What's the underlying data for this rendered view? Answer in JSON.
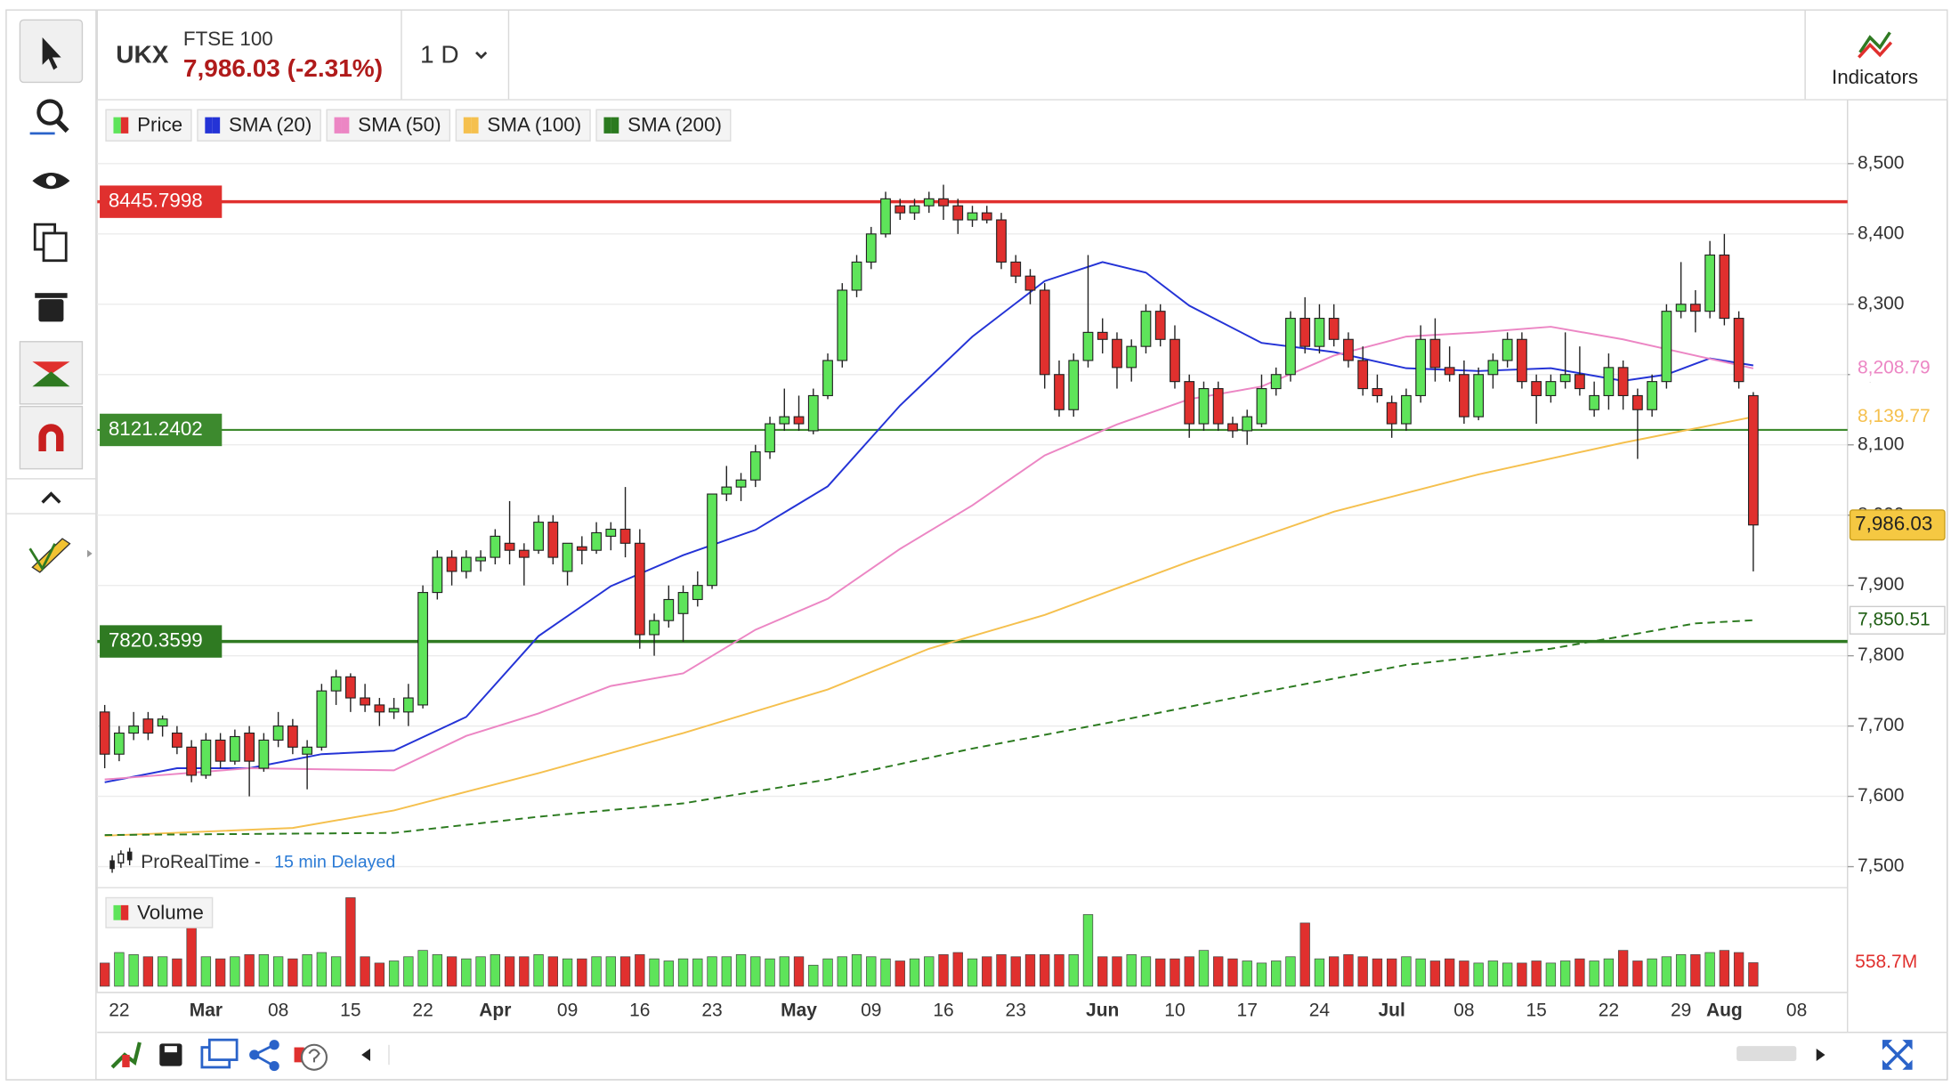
{
  "header": {
    "symbol": "UKX",
    "name": "FTSE 100",
    "quote": "7,986.03 (-2.31%)",
    "interval": "1 D",
    "indicators": "Indicators"
  },
  "footer": {
    "source": "ProRealTime -",
    "delay": "15 min Delayed"
  },
  "chart_data": {
    "type": "candlestick",
    "name": "Price",
    "up_color": "#5ee45a",
    "down_color": "#e0302e",
    "last_label": "7,986.03",
    "categories": [
      null,
      "22",
      null,
      null,
      null,
      null,
      null,
      "Mar",
      null,
      null,
      null,
      null,
      "08",
      null,
      null,
      null,
      null,
      "15",
      null,
      null,
      null,
      null,
      "22",
      null,
      null,
      null,
      null,
      "Apr",
      null,
      null,
      null,
      null,
      "09",
      null,
      null,
      null,
      null,
      "16",
      null,
      null,
      null,
      null,
      "23",
      null,
      null,
      null,
      null,
      null,
      "May",
      null,
      null,
      null,
      null,
      "09",
      null,
      null,
      null,
      null,
      "16",
      null,
      null,
      null,
      null,
      "23",
      null,
      null,
      null,
      null,
      null,
      "Jun",
      null,
      null,
      null,
      null,
      "10",
      null,
      null,
      null,
      null,
      "17",
      null,
      null,
      null,
      null,
      "24",
      null,
      null,
      null,
      null,
      "Jul",
      null,
      null,
      null,
      null,
      "08",
      null,
      null,
      null,
      null,
      "15",
      null,
      null,
      null,
      null,
      "22",
      null,
      null,
      null,
      null,
      "29",
      null,
      null,
      "Aug",
      null,
      null,
      null,
      null,
      "08",
      null,
      null
    ],
    "ohlc": [
      [
        7720,
        7730,
        7640,
        7660
      ],
      [
        7660,
        7700,
        7650,
        7690
      ],
      [
        7690,
        7720,
        7680,
        7700
      ],
      [
        7710,
        7720,
        7680,
        7690
      ],
      [
        7700,
        7715,
        7685,
        7710
      ],
      [
        7690,
        7700,
        7660,
        7670
      ],
      [
        7670,
        7680,
        7620,
        7630
      ],
      [
        7630,
        7690,
        7625,
        7680
      ],
      [
        7680,
        7690,
        7640,
        7650
      ],
      [
        7650,
        7695,
        7645,
        7685
      ],
      [
        7690,
        7700,
        7600,
        7650
      ],
      [
        7640,
        7690,
        7635,
        7680
      ],
      [
        7680,
        7720,
        7670,
        7700
      ],
      [
        7700,
        7710,
        7660,
        7670
      ],
      [
        7660,
        7680,
        7610,
        7670
      ],
      [
        7670,
        7760,
        7665,
        7750
      ],
      [
        7750,
        7780,
        7730,
        7770
      ],
      [
        7770,
        7775,
        7720,
        7740
      ],
      [
        7740,
        7760,
        7720,
        7730
      ],
      [
        7730,
        7740,
        7700,
        7720
      ],
      [
        7720,
        7740,
        7710,
        7725
      ],
      [
        7720,
        7760,
        7700,
        7740
      ],
      [
        7730,
        7900,
        7725,
        7890
      ],
      [
        7890,
        7950,
        7880,
        7940
      ],
      [
        7940,
        7950,
        7900,
        7920
      ],
      [
        7920,
        7950,
        7910,
        7940
      ],
      [
        7935,
        7950,
        7920,
        7940
      ],
      [
        7940,
        7980,
        7930,
        7970
      ],
      [
        7960,
        8020,
        7930,
        7950
      ],
      [
        7950,
        7960,
        7900,
        7940
      ],
      [
        7950,
        8000,
        7945,
        7990
      ],
      [
        7990,
        8000,
        7930,
        7940
      ],
      [
        7920,
        7960,
        7900,
        7960
      ],
      [
        7955,
        7970,
        7930,
        7950
      ],
      [
        7950,
        7990,
        7945,
        7975
      ],
      [
        7970,
        7990,
        7950,
        7980
      ],
      [
        7980,
        8040,
        7940,
        7960
      ],
      [
        7960,
        7980,
        7810,
        7830
      ],
      [
        7830,
        7860,
        7800,
        7850
      ],
      [
        7850,
        7900,
        7840,
        7880
      ],
      [
        7860,
        7900,
        7820,
        7890
      ],
      [
        7880,
        7920,
        7870,
        7900
      ],
      [
        7900,
        8030,
        7895,
        8030
      ],
      [
        8030,
        8070,
        8020,
        8040
      ],
      [
        8040,
        8060,
        8020,
        8050
      ],
      [
        8050,
        8100,
        8040,
        8090
      ],
      [
        8090,
        8140,
        8080,
        8130
      ],
      [
        8130,
        8180,
        8120,
        8140
      ],
      [
        8140,
        8170,
        8120,
        8130
      ],
      [
        8120,
        8180,
        8115,
        8170
      ],
      [
        8170,
        8230,
        8165,
        8220
      ],
      [
        8220,
        8330,
        8210,
        8320
      ],
      [
        8320,
        8370,
        8310,
        8360
      ],
      [
        8360,
        8410,
        8350,
        8400
      ],
      [
        8400,
        8460,
        8395,
        8450
      ],
      [
        8440,
        8450,
        8420,
        8430
      ],
      [
        8430,
        8450,
        8420,
        8440
      ],
      [
        8440,
        8460,
        8430,
        8450
      ],
      [
        8450,
        8470,
        8420,
        8440
      ],
      [
        8440,
        8450,
        8400,
        8420
      ],
      [
        8420,
        8440,
        8410,
        8430
      ],
      [
        8430,
        8440,
        8415,
        8420
      ],
      [
        8420,
        8430,
        8350,
        8360
      ],
      [
        8360,
        8370,
        8330,
        8340
      ],
      [
        8340,
        8350,
        8300,
        8320
      ],
      [
        8320,
        8330,
        8180,
        8200
      ],
      [
        8200,
        8220,
        8140,
        8150
      ],
      [
        8150,
        8230,
        8140,
        8220
      ],
      [
        8220,
        8370,
        8210,
        8260
      ],
      [
        8260,
        8280,
        8230,
        8250
      ],
      [
        8250,
        8260,
        8180,
        8210
      ],
      [
        8210,
        8250,
        8190,
        8240
      ],
      [
        8240,
        8300,
        8230,
        8290
      ],
      [
        8290,
        8300,
        8240,
        8250
      ],
      [
        8250,
        8270,
        8180,
        8190
      ],
      [
        8190,
        8200,
        8110,
        8130
      ],
      [
        8130,
        8190,
        8120,
        8180
      ],
      [
        8180,
        8190,
        8120,
        8130
      ],
      [
        8130,
        8140,
        8110,
        8120
      ],
      [
        8120,
        8150,
        8100,
        8140
      ],
      [
        8130,
        8200,
        8125,
        8180
      ],
      [
        8180,
        8210,
        8170,
        8200
      ],
      [
        8200,
        8290,
        8190,
        8280
      ],
      [
        8280,
        8310,
        8230,
        8240
      ],
      [
        8240,
        8300,
        8230,
        8280
      ],
      [
        8280,
        8300,
        8240,
        8250
      ],
      [
        8250,
        8260,
        8210,
        8220
      ],
      [
        8220,
        8240,
        8170,
        8180
      ],
      [
        8180,
        8200,
        8160,
        8170
      ],
      [
        8160,
        8170,
        8110,
        8130
      ],
      [
        8130,
        8180,
        8120,
        8170
      ],
      [
        8170,
        8270,
        8160,
        8250
      ],
      [
        8250,
        8280,
        8190,
        8210
      ],
      [
        8210,
        8240,
        8190,
        8200
      ],
      [
        8200,
        8220,
        8130,
        8140
      ],
      [
        8140,
        8210,
        8135,
        8200
      ],
      [
        8200,
        8230,
        8180,
        8220
      ],
      [
        8220,
        8260,
        8210,
        8250
      ],
      [
        8250,
        8260,
        8180,
        8190
      ],
      [
        8190,
        8200,
        8130,
        8170
      ],
      [
        8170,
        8200,
        8160,
        8190
      ],
      [
        8190,
        8260,
        8180,
        8200
      ],
      [
        8200,
        8240,
        8170,
        8180
      ],
      [
        8150,
        8190,
        8140,
        8170
      ],
      [
        8170,
        8230,
        8150,
        8210
      ],
      [
        8210,
        8220,
        8150,
        8170
      ],
      [
        8170,
        8180,
        8080,
        8150
      ],
      [
        8150,
        8200,
        8140,
        8190
      ],
      [
        8190,
        8300,
        8180,
        8290
      ],
      [
        8290,
        8360,
        8280,
        8300
      ],
      [
        8300,
        8320,
        8260,
        8290
      ],
      [
        8290,
        8390,
        8280,
        8370
      ],
      [
        8370,
        8400,
        8270,
        8280
      ],
      [
        8280,
        8290,
        8180,
        8190
      ],
      [
        8170,
        8175,
        7920,
        7986.03
      ],
      null,
      null,
      null,
      null,
      null
    ],
    "volume": {
      "name": "Volume",
      "last_label": "558.7M",
      "values": [
        550,
        800,
        750,
        700,
        700,
        650,
        1500,
        700,
        650,
        700,
        750,
        750,
        700,
        650,
        750,
        800,
        700,
        2100,
        700,
        550,
        600,
        700,
        850,
        750,
        700,
        650,
        700,
        750,
        700,
        700,
        750,
        700,
        650,
        650,
        700,
        700,
        700,
        750,
        650,
        600,
        650,
        650,
        700,
        700,
        750,
        700,
        650,
        700,
        700,
        500,
        650,
        700,
        750,
        700,
        650,
        600,
        650,
        700,
        750,
        800,
        650,
        700,
        750,
        700,
        750,
        750,
        750,
        750,
        1700,
        700,
        700,
        750,
        700,
        650,
        650,
        700,
        850,
        700,
        650,
        600,
        550,
        600,
        700,
        1500,
        650,
        700,
        750,
        700,
        650,
        650,
        700,
        650,
        600,
        650,
        600,
        550,
        600,
        550,
        550,
        600,
        550,
        600,
        650,
        600,
        650,
        850,
        600,
        650,
        700,
        750,
        750,
        800,
        850,
        800,
        558.7,
        null,
        null,
        null,
        null,
        null
      ]
    },
    "vlim": [
      0,
      2100
    ],
    "ylim": [
      7470,
      8582
    ],
    "yticks": [
      {
        "value": 7500,
        "label": "7,500"
      },
      {
        "value": 7600,
        "label": "7,600"
      },
      {
        "value": 7700,
        "label": "7,700"
      },
      {
        "value": 7800,
        "label": "7,800"
      },
      {
        "value": 7900,
        "label": "7,900"
      },
      {
        "value": 8000,
        "label": "8,000"
      },
      {
        "value": 8100,
        "label": "8,100"
      },
      {
        "value": 8200,
        "label": "8,200"
      },
      {
        "value": 8300,
        "label": "8,300"
      },
      {
        "value": 8400,
        "label": "8,400"
      },
      {
        "value": 8500,
        "label": "8,500"
      }
    ],
    "grid": true,
    "series": [
      {
        "name": "SMA (20)",
        "color": "#2433d6",
        "x": [
          0,
          5,
          10,
          15,
          20,
          25,
          30,
          35,
          40,
          45,
          50,
          55,
          60,
          65,
          69,
          72,
          75,
          80,
          85,
          90,
          95,
          100,
          105,
          108,
          111,
          114
        ],
        "values": [
          7620,
          7640,
          7640,
          7660,
          7665,
          7713,
          7828,
          7899,
          7943,
          7979,
          8041,
          8156,
          8254,
          8333,
          8360,
          8345,
          8298,
          8245,
          8232,
          8209,
          8205,
          8209,
          8191,
          8200,
          8223,
          8213
        ]
      },
      {
        "name": "SMA (50)",
        "color": "#ec86c4",
        "last_label": "8,208.79",
        "x": [
          0,
          10,
          20,
          25,
          30,
          35,
          40,
          45,
          50,
          55,
          60,
          65,
          70,
          75,
          80,
          85,
          90,
          95,
          100,
          105,
          110,
          114
        ],
        "values": [
          7624,
          7640,
          7637,
          7686,
          7718,
          7757,
          7775,
          7837,
          7881,
          7952,
          8014,
          8085,
          8129,
          8165,
          8183,
          8227,
          8254,
          8260,
          8268,
          8250,
          8227,
          8208.79
        ]
      },
      {
        "name": "SMA (100)",
        "color": "#f5c04e",
        "last_label": "8,139.77",
        "x": [
          0,
          13,
          20,
          30,
          40,
          50,
          57,
          65,
          75,
          85,
          95,
          105,
          114
        ],
        "values": [
          7544,
          7555,
          7580,
          7633,
          7690,
          7752,
          7810,
          7858,
          7934,
          8005,
          8058,
          8103,
          8139.77
        ]
      },
      {
        "name": "SMA (200)",
        "color": "#2b7a1f",
        "dashed": true,
        "last_label": "7,850.51",
        "x": [
          0,
          20,
          30,
          40,
          50,
          60,
          70,
          80,
          90,
          100,
          110,
          114
        ],
        "values": [
          7545,
          7548,
          7571,
          7590,
          7624,
          7668,
          7707,
          7748,
          7787,
          7810,
          7846,
          7850.51
        ]
      }
    ],
    "levels": [
      {
        "value": 8445.7998,
        "color": "#e0302e"
      },
      {
        "value": 8121.2402,
        "color": "#3d8a2e"
      },
      {
        "value": 7820.3599,
        "color": "#2f7a22"
      }
    ]
  }
}
